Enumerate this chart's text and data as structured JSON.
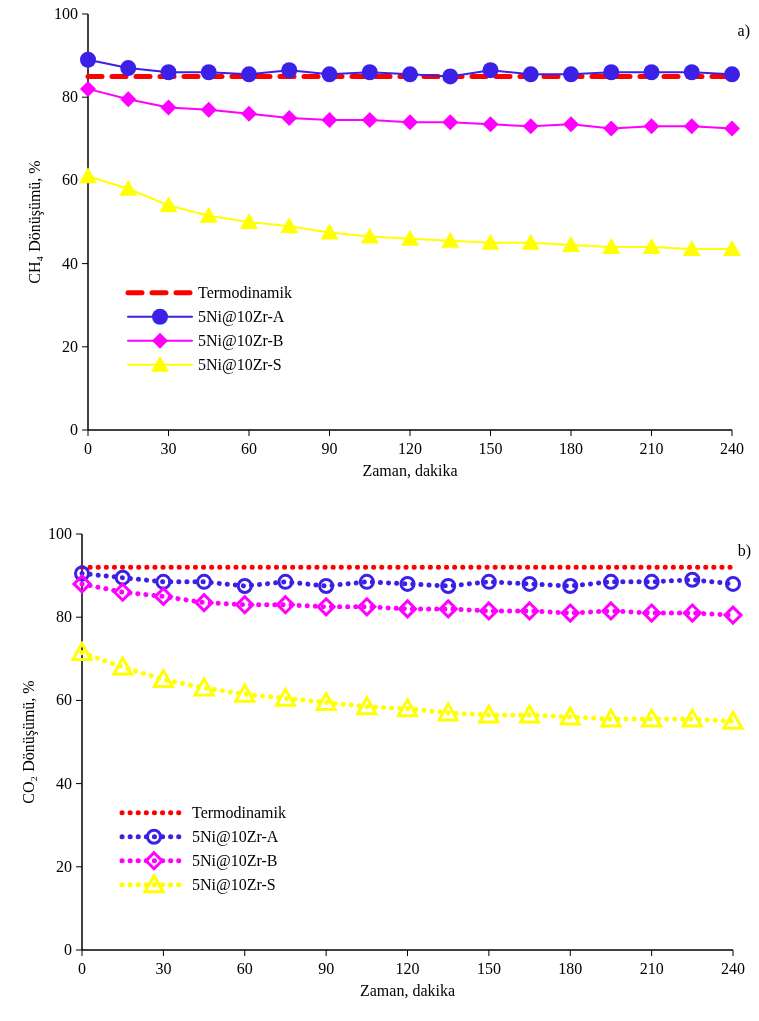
{
  "chart_data": [
    {
      "type": "line",
      "ylabel": "CH₄ Dönüşümü, %",
      "xlabel": "Zaman, dakika",
      "annotations": [
        "a)"
      ],
      "x": [
        0,
        15,
        30,
        45,
        60,
        75,
        90,
        105,
        120,
        135,
        150,
        165,
        180,
        195,
        210,
        225,
        240
      ],
      "xlim": [
        0,
        240
      ],
      "xticks": [
        0,
        30,
        60,
        90,
        120,
        150,
        180,
        210,
        240
      ],
      "ylim": [
        0,
        100
      ],
      "yticks": [
        0,
        20,
        40,
        60,
        80,
        100
      ],
      "grid": false,
      "legend": "left",
      "series": [
        {
          "name": "Termodinamik",
          "color": "#ff0000",
          "line_style": "dashed",
          "marker": "none",
          "values": [
            85,
            85,
            85,
            85,
            85,
            85,
            85,
            85,
            85,
            85,
            85,
            85,
            85,
            85,
            85,
            85,
            85
          ]
        },
        {
          "name": "5Ni@10Zr-A",
          "color": "#3b20e6",
          "line_style": "solid",
          "marker": "circle",
          "values": [
            89,
            87,
            86,
            86,
            85.5,
            86.5,
            85.5,
            86,
            85.5,
            85,
            86.5,
            85.5,
            85.5,
            86,
            86,
            86,
            85.5
          ]
        },
        {
          "name": "5Ni@10Zr-B",
          "color": "#ff00ff",
          "line_style": "solid",
          "marker": "diamond",
          "values": [
            82,
            79.5,
            77.5,
            77,
            76,
            75,
            74.5,
            74.5,
            74,
            74,
            73.5,
            73,
            73.5,
            72.5,
            73,
            73,
            72.5
          ]
        },
        {
          "name": "5Ni@10Zr-S",
          "color": "#ffff00",
          "line_style": "solid",
          "marker": "triangle",
          "values": [
            61,
            58,
            54,
            51.5,
            50,
            49,
            47.5,
            46.5,
            46,
            45.5,
            45,
            45,
            44.5,
            44,
            44,
            43.5,
            43.5
          ]
        }
      ]
    },
    {
      "type": "line",
      "ylabel": "CO₂ Dönüşümü, %",
      "xlabel": "Zaman, dakika",
      "annotations": [
        "b)"
      ],
      "x": [
        0,
        15,
        30,
        45,
        60,
        75,
        90,
        105,
        120,
        135,
        150,
        165,
        180,
        195,
        210,
        225,
        240
      ],
      "xlim": [
        0,
        240
      ],
      "xticks": [
        0,
        30,
        60,
        90,
        120,
        150,
        180,
        210,
        240
      ],
      "ylim": [
        0,
        100
      ],
      "yticks": [
        0,
        20,
        40,
        60,
        80,
        100
      ],
      "grid": false,
      "legend": "left",
      "series": [
        {
          "name": "Termodinamik",
          "color": "#ff0000",
          "line_style": "dotted",
          "marker": "none",
          "values": [
            92,
            92,
            92,
            92,
            92,
            92,
            92,
            92,
            92,
            92,
            92,
            92,
            92,
            92,
            92,
            92,
            92
          ]
        },
        {
          "name": "5Ni@10Zr-A",
          "color": "#3b20e6",
          "line_style": "dotted",
          "marker": "circle",
          "values": [
            90.5,
            89.5,
            88.5,
            88.5,
            87.5,
            88.5,
            87.5,
            88.5,
            88,
            87.5,
            88.5,
            88,
            87.5,
            88.5,
            88.5,
            89,
            88
          ]
        },
        {
          "name": "5Ni@10Zr-B",
          "color": "#ff00ff",
          "line_style": "dotted",
          "marker": "diamond",
          "values": [
            88,
            86,
            85,
            83.5,
            83,
            83,
            82.5,
            82.5,
            82,
            82,
            81.5,
            81.5,
            81,
            81.5,
            81,
            81,
            80.5
          ]
        },
        {
          "name": "5Ni@10Zr-S",
          "color": "#ffff00",
          "line_style": "dotted",
          "marker": "triangle",
          "values": [
            71.5,
            68,
            65,
            63,
            61.5,
            60.5,
            59.5,
            58.5,
            58,
            57,
            56.5,
            56.5,
            56,
            55.5,
            55.5,
            55.5,
            55
          ]
        }
      ]
    }
  ]
}
